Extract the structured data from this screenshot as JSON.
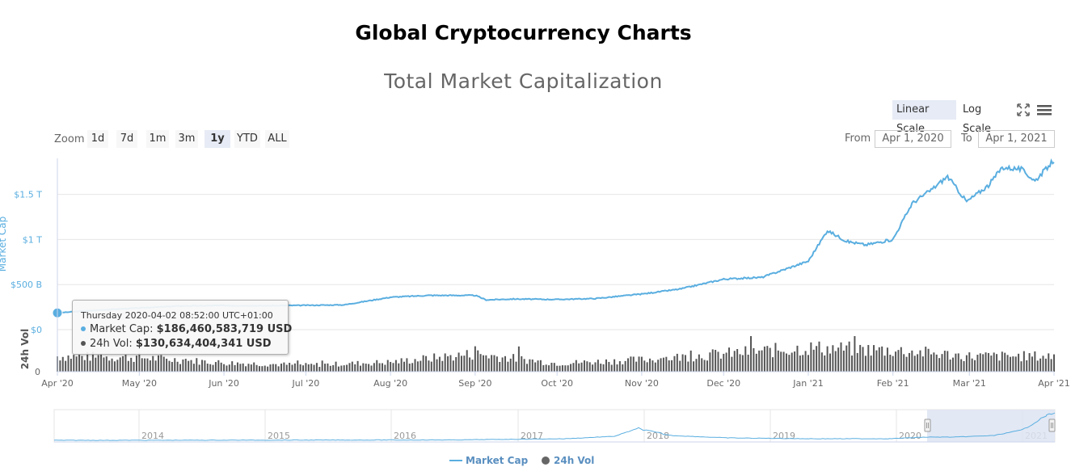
{
  "page": {
    "heading": "Global Cryptocurrency Charts"
  },
  "controls": {
    "linear_scale": "Linear Scale",
    "log_scale": "Log Scale",
    "zoom_label": "Zoom",
    "zoom_buttons": [
      "1d",
      "7d",
      "1m",
      "3m",
      "1y",
      "YTD",
      "ALL"
    ],
    "zoom_active": "1y",
    "from_label": "From",
    "from_value": "Apr 1, 2020",
    "to_label": "To",
    "to_value": "Apr 1, 2021"
  },
  "tooltip": {
    "header": "Thursday 2020-04-02 08:52:00 UTC+01:00",
    "mcap_label": "Market Cap: ",
    "mcap_value": "$186,460,583,719 USD",
    "vol_label": "24h Vol: ",
    "vol_value": "$130,634,404,341 USD"
  },
  "legend": {
    "market_cap": "Market Cap",
    "volume": "24h Vol"
  },
  "colors": {
    "market_cap": "#5aaee0",
    "volume": "#555555",
    "navigator_fill": "#dde4f2"
  },
  "chart_data": {
    "type": "line",
    "title": "Total Market Capitalization",
    "xlabel": "",
    "ylabel": "Market Cap",
    "ylabel_volume": "24h Vol",
    "x_ticks": [
      "Apr '20",
      "May '20",
      "Jun '20",
      "Jul '20",
      "Aug '20",
      "Sep '20",
      "Oct '20",
      "Nov '20",
      "Dec '20",
      "Jan '21",
      "Feb '21",
      "Mar '21",
      "Apr '21"
    ],
    "y_ticks": [
      "$0",
      "$500 B",
      "$1 T",
      "$1.5 T"
    ],
    "volume_y_ticks": [
      "0"
    ],
    "ylim": [
      0,
      1900
    ],
    "y_unit": "billions USD",
    "series": [
      {
        "name": "Market Cap",
        "x": [
          "2020-04-01",
          "2020-04-15",
          "2020-05-01",
          "2020-05-15",
          "2020-06-01",
          "2020-06-15",
          "2020-07-01",
          "2020-07-15",
          "2020-08-01",
          "2020-08-15",
          "2020-09-01",
          "2020-09-05",
          "2020-09-15",
          "2020-10-01",
          "2020-10-15",
          "2020-11-01",
          "2020-11-15",
          "2020-12-01",
          "2020-12-15",
          "2021-01-01",
          "2021-01-08",
          "2021-01-15",
          "2021-01-22",
          "2021-02-01",
          "2021-02-08",
          "2021-02-15",
          "2021-02-21",
          "2021-02-28",
          "2021-03-08",
          "2021-03-13",
          "2021-03-20",
          "2021-03-25",
          "2021-04-01"
        ],
        "values": [
          186,
          215,
          240,
          262,
          268,
          265,
          270,
          275,
          360,
          380,
          380,
          330,
          340,
          335,
          345,
          395,
          450,
          560,
          580,
          760,
          1100,
          980,
          940,
          1000,
          1400,
          1550,
          1700,
          1420,
          1600,
          1800,
          1780,
          1650,
          1880
        ]
      },
      {
        "name": "24h Vol",
        "x": [
          "2020-04-01",
          "2020-05-01",
          "2020-06-01",
          "2020-07-01",
          "2020-08-01",
          "2020-09-01",
          "2020-10-01",
          "2020-11-01",
          "2020-12-01",
          "2021-01-01",
          "2021-02-01",
          "2021-03-01",
          "2021-04-01"
        ],
        "values": [
          130,
          120,
          75,
          55,
          80,
          150,
          70,
          100,
          150,
          200,
          180,
          130,
          130
        ]
      }
    ],
    "navigator": {
      "x_ticks": [
        "2014",
        "2015",
        "2016",
        "2017",
        "2018",
        "2019",
        "2020",
        "2021"
      ]
    }
  }
}
